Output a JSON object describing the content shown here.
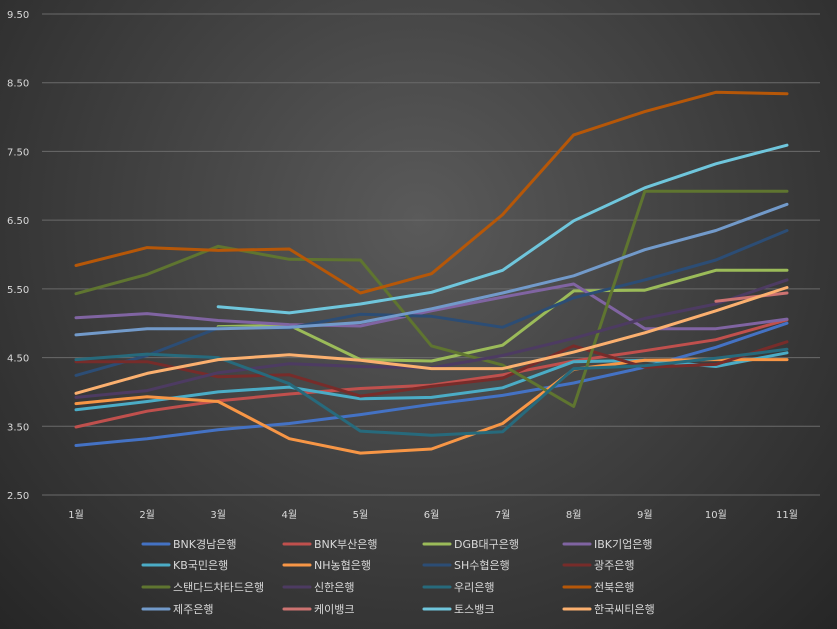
{
  "chart_data": {
    "type": "line",
    "title": "",
    "xlabel": "",
    "ylabel": "",
    "categories": [
      "1월",
      "2월",
      "3월",
      "4월",
      "5월",
      "6월",
      "7월",
      "8월",
      "9월",
      "10월",
      "11월"
    ],
    "ylim": [
      2.5,
      9.5
    ],
    "yticks": [
      "2.50",
      "3.50",
      "4.50",
      "5.50",
      "6.50",
      "7.50",
      "8.50",
      "9.50"
    ],
    "grid": true,
    "legend_position": "bottom",
    "series": [
      {
        "name": "BNK경남은행",
        "color": "#4472c4",
        "values": [
          3.22,
          3.32,
          3.45,
          3.54,
          3.67,
          3.82,
          3.95,
          4.13,
          4.36,
          4.65,
          5.0
        ]
      },
      {
        "name": "BNK부산은행",
        "color": "#c0504d",
        "values": [
          3.49,
          3.72,
          3.87,
          3.97,
          4.05,
          4.1,
          4.25,
          4.45,
          4.6,
          4.76,
          5.05
        ]
      },
      {
        "name": "DGB대구은행",
        "color": "#9bbb59",
        "values": [
          null,
          null,
          4.95,
          4.97,
          4.47,
          4.45,
          4.68,
          5.47,
          5.48,
          5.77,
          5.77
        ]
      },
      {
        "name": "IBK기업은행",
        "color": "#8064a2",
        "values": [
          5.08,
          5.14,
          5.04,
          4.98,
          4.96,
          5.18,
          5.38,
          5.57,
          4.92,
          4.92,
          5.06
        ]
      },
      {
        "name": "KB국민은행",
        "color": "#4bacc6",
        "values": [
          3.74,
          3.86,
          4.0,
          4.07,
          3.9,
          3.92,
          4.06,
          4.44,
          4.46,
          4.37,
          4.57
        ]
      },
      {
        "name": "NH농협은행",
        "color": "#f79646",
        "values": [
          3.83,
          3.93,
          3.86,
          3.32,
          3.11,
          3.17,
          3.54,
          4.33,
          4.46,
          4.47,
          4.47
        ]
      },
      {
        "name": "SH수협은행",
        "color": "#2c4d75",
        "values": [
          4.24,
          4.53,
          4.93,
          4.93,
          5.13,
          5.1,
          4.94,
          5.37,
          5.63,
          5.92,
          6.35
        ]
      },
      {
        "name": "광주은행",
        "color": "#772c2a",
        "values": [
          4.44,
          4.44,
          4.22,
          4.25,
          3.94,
          4.08,
          4.2,
          4.67,
          4.36,
          4.4,
          4.73
        ]
      },
      {
        "name": "스탠다드차타드은행",
        "color": "#5f7530",
        "values": [
          5.43,
          5.71,
          6.12,
          5.93,
          5.92,
          4.67,
          4.39,
          3.79,
          6.92,
          6.92,
          6.92
        ]
      },
      {
        "name": "신한은행",
        "color": "#4d3b62",
        "values": [
          3.92,
          4.02,
          4.28,
          4.41,
          4.37,
          4.35,
          4.53,
          4.78,
          5.07,
          5.28,
          5.63
        ]
      },
      {
        "name": "우리은행",
        "color": "#276a7c",
        "values": [
          4.47,
          4.55,
          4.5,
          4.12,
          3.43,
          3.37,
          3.42,
          4.34,
          4.38,
          4.49,
          4.62
        ]
      },
      {
        "name": "전북은행",
        "color": "#b65708",
        "values": [
          5.84,
          6.1,
          6.06,
          6.08,
          5.44,
          5.72,
          6.58,
          7.74,
          8.08,
          8.36,
          8.34
        ]
      },
      {
        "name": "제주은행",
        "color": "#729aca",
        "values": [
          4.83,
          4.92,
          4.92,
          4.94,
          5.01,
          5.21,
          5.44,
          5.69,
          6.07,
          6.35,
          6.73
        ]
      },
      {
        "name": "케이뱅크",
        "color": "#cd7371",
        "values": [
          null,
          null,
          null,
          null,
          null,
          null,
          null,
          null,
          null,
          5.32,
          5.44
        ]
      },
      {
        "name": "토스뱅크",
        "color": "#6fc6dc",
        "values": [
          null,
          null,
          5.24,
          5.15,
          5.28,
          5.45,
          5.77,
          6.49,
          6.97,
          7.32,
          7.59
        ]
      },
      {
        "name": "한국씨티은행",
        "color": "#fbb06f",
        "values": [
          3.98,
          4.27,
          4.47,
          4.54,
          4.46,
          4.34,
          4.34,
          4.58,
          4.86,
          5.18,
          5.52
        ]
      }
    ]
  }
}
